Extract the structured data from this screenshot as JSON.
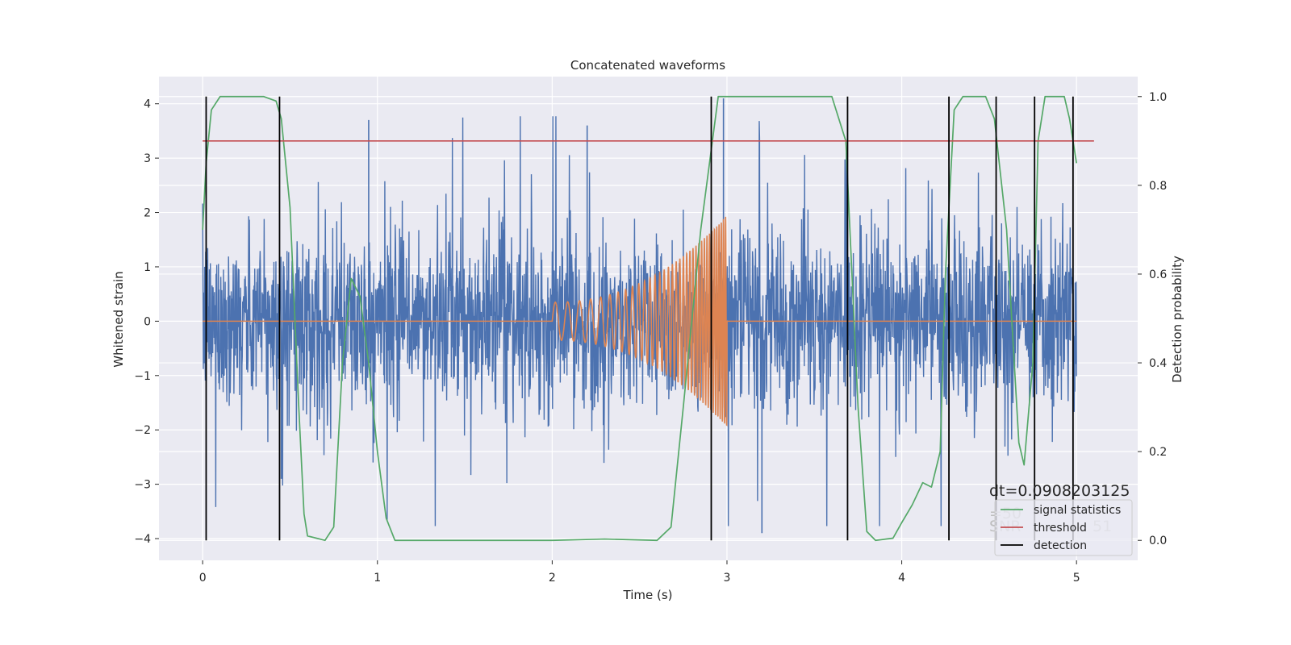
{
  "chart_data": {
    "type": "line",
    "title": "Concatenated waveforms",
    "xlabel": "Time (s)",
    "ylabel": "Whitened strain",
    "y2label": "Detection probability",
    "xlim": [
      -0.25,
      5.35
    ],
    "ylim": [
      -4.4,
      4.5
    ],
    "y2lim": [
      -0.045,
      1.045
    ],
    "xticks": [
      0,
      1,
      2,
      3,
      4,
      5
    ],
    "xtick_labels": [
      "0",
      "1",
      "2",
      "3",
      "4",
      "5"
    ],
    "yticks": [
      -4,
      -3,
      -2,
      -1,
      0,
      1,
      2,
      3,
      4
    ],
    "ytick_labels": [
      "−4",
      "−3",
      "−2",
      "−1",
      "0",
      "1",
      "2",
      "3",
      "4"
    ],
    "y2ticks": [
      0.0,
      0.2,
      0.4,
      0.6,
      0.8,
      1.0
    ],
    "y2tick_labels": [
      "0.0",
      "0.2",
      "0.4",
      "0.6",
      "0.8",
      "1.0"
    ],
    "grid": true,
    "legend_position": "lower-right",
    "series": [
      {
        "kind": "noise",
        "color": "#4c72b0",
        "t_start": 0,
        "t_end": 5,
        "amplitude_envelope": 2.6,
        "notable_peaks": [
          {
            "t": 0.95,
            "y": 3.7
          },
          {
            "t": 2.2,
            "y": 3.6
          },
          {
            "t": 2.98,
            "y": 4.1
          },
          {
            "t": 3.2,
            "y": -3.9
          },
          {
            "t": 0.45,
            "y": -2.9
          }
        ]
      },
      {
        "kind": "chirp",
        "color": "#dd8452",
        "t_start": 0,
        "t_end": 5,
        "chirp_start": 2.0,
        "chirp_end": 3.0,
        "amplitude_start": 0.35,
        "amplitude_end": 1.95
      },
      {
        "name": "signal statistics",
        "axis": "right",
        "color": "#55a868",
        "points": [
          [
            0.0,
            0.7
          ],
          [
            0.02,
            0.85
          ],
          [
            0.05,
            0.97
          ],
          [
            0.1,
            1.0
          ],
          [
            0.35,
            1.0
          ],
          [
            0.42,
            0.99
          ],
          [
            0.45,
            0.95
          ],
          [
            0.5,
            0.75
          ],
          [
            0.55,
            0.3
          ],
          [
            0.58,
            0.06
          ],
          [
            0.6,
            0.01
          ],
          [
            0.7,
            0.0
          ],
          [
            0.75,
            0.03
          ],
          [
            0.8,
            0.4
          ],
          [
            0.85,
            0.59
          ],
          [
            0.9,
            0.55
          ],
          [
            0.95,
            0.4
          ],
          [
            1.0,
            0.2
          ],
          [
            1.05,
            0.05
          ],
          [
            1.1,
            0.0
          ],
          [
            2.0,
            0.0
          ],
          [
            2.3,
            0.003
          ],
          [
            2.6,
            0.0
          ],
          [
            2.68,
            0.03
          ],
          [
            2.75,
            0.3
          ],
          [
            2.85,
            0.7
          ],
          [
            2.95,
            1.0
          ],
          [
            3.6,
            1.0
          ],
          [
            3.68,
            0.9
          ],
          [
            3.75,
            0.3
          ],
          [
            3.8,
            0.02
          ],
          [
            3.85,
            0.0
          ],
          [
            3.95,
            0.005
          ],
          [
            4.0,
            0.04
          ],
          [
            4.06,
            0.08
          ],
          [
            4.12,
            0.13
          ],
          [
            4.17,
            0.12
          ],
          [
            4.22,
            0.2
          ],
          [
            4.25,
            0.6
          ],
          [
            4.3,
            0.97
          ],
          [
            4.35,
            1.0
          ],
          [
            4.48,
            1.0
          ],
          [
            4.53,
            0.95
          ],
          [
            4.6,
            0.7
          ],
          [
            4.67,
            0.22
          ],
          [
            4.7,
            0.17
          ],
          [
            4.75,
            0.4
          ],
          [
            4.78,
            0.9
          ],
          [
            4.82,
            1.0
          ],
          [
            4.93,
            1.0
          ],
          [
            4.96,
            0.95
          ],
          [
            5.0,
            0.85
          ]
        ]
      },
      {
        "name": "threshold",
        "axis": "right",
        "color": "#c44e52",
        "value": 0.9,
        "x_range": [
          0.0,
          5.1
        ]
      },
      {
        "name": "detection",
        "axis": "right",
        "color": "#000000",
        "times": [
          0.02,
          0.44,
          2.91,
          3.69,
          4.27,
          4.54,
          4.76,
          4.98
        ]
      }
    ],
    "annotations": [
      "dt=0.0908203125",
      "=50",
      "SNR",
      "51"
    ]
  }
}
